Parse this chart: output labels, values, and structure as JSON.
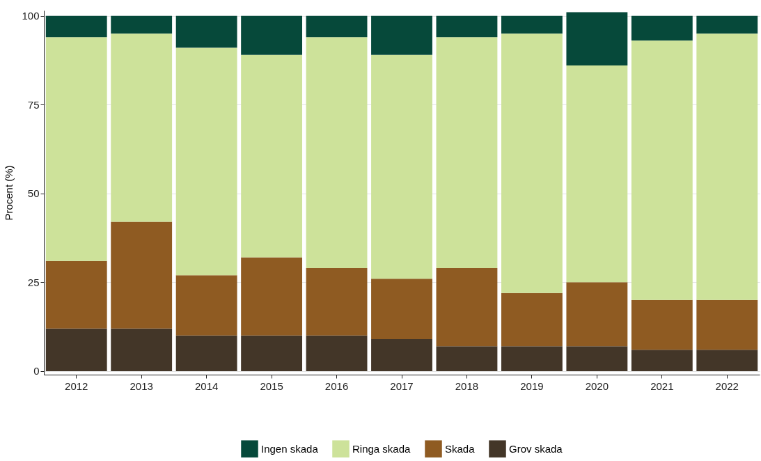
{
  "chart_data": {
    "type": "bar",
    "stacked": true,
    "ylabel": "Procent (%)",
    "categories": [
      "2012",
      "2013",
      "2014",
      "2015",
      "2016",
      "2017",
      "2018",
      "2019",
      "2020",
      "2021",
      "2022"
    ],
    "series": [
      {
        "name": "Grov skada",
        "color": "#433628",
        "values": [
          12,
          12,
          10,
          10,
          10,
          9,
          7,
          7,
          7,
          6,
          6
        ]
      },
      {
        "name": "Skada",
        "color": "#8f5b22",
        "values": [
          19,
          30,
          17,
          22,
          19,
          17,
          22,
          15,
          18,
          14,
          14
        ]
      },
      {
        "name": "Ringa skada",
        "color": "#cde29a",
        "values": [
          63,
          53,
          64,
          57,
          65,
          63,
          65,
          73,
          61,
          73,
          75
        ]
      },
      {
        "name": "Ingen skada",
        "color": "#06493a",
        "values": [
          6,
          5,
          9,
          11,
          6,
          11,
          6,
          5,
          15,
          7,
          5
        ]
      }
    ],
    "ylim": [
      -1,
      101.5
    ],
    "yticks": [
      0,
      25,
      50,
      75,
      100
    ],
    "grid": "y",
    "legend": "bottom"
  }
}
